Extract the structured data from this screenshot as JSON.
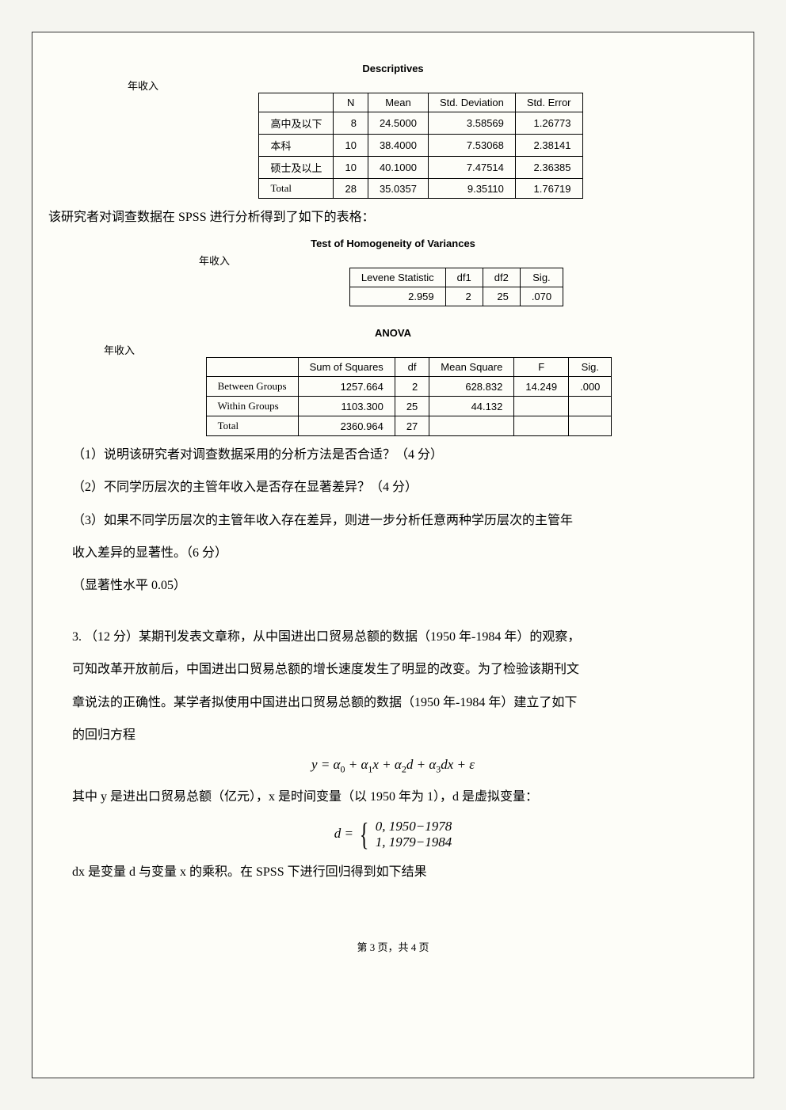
{
  "descriptives": {
    "title": "Descriptives",
    "subtitle": "年收入",
    "columns": [
      "",
      "N",
      "Mean",
      "Std. Deviation",
      "Std. Error"
    ],
    "rows": [
      [
        "高中及以下",
        "8",
        "24.5000",
        "3.58569",
        "1.26773"
      ],
      [
        "本科",
        "10",
        "38.4000",
        "7.53068",
        "2.38141"
      ],
      [
        "硕士及以上",
        "10",
        "40.1000",
        "7.47514",
        "2.36385"
      ],
      [
        "Total",
        "28",
        "35.0357",
        "9.35110",
        "1.76719"
      ]
    ]
  },
  "intro_line": "该研究者对调查数据在 SPSS 进行分析得到了如下的表格：",
  "homogeneity": {
    "title": "Test of Homogeneity of Variances",
    "subtitle": "年收入",
    "columns": [
      "Levene Statistic",
      "df1",
      "df2",
      "Sig."
    ],
    "row": [
      "2.959",
      "2",
      "25",
      ".070"
    ]
  },
  "anova": {
    "title": "ANOVA",
    "subtitle": "年收入",
    "columns": [
      "",
      "Sum of Squares",
      "df",
      "Mean Square",
      "F",
      "Sig."
    ],
    "rows": [
      [
        "Between Groups",
        "1257.664",
        "2",
        "628.832",
        "14.249",
        ".000"
      ],
      [
        "Within Groups",
        "1103.300",
        "25",
        "44.132",
        "",
        ""
      ],
      [
        "Total",
        "2360.964",
        "27",
        "",
        "",
        ""
      ]
    ]
  },
  "questions": {
    "q1": "（1）说明该研究者对调查数据采用的分析方法是否合适？（4 分）",
    "q2": "（2）不同学历层次的主管年收入是否存在显著差异？（4 分）",
    "q3a": "（3）如果不同学历层次的主管年收入存在差异，则进一步分析任意两种学历层次的主管年",
    "q3b": "收入差异的显著性。（6 分）",
    "sig": "（显著性水平 0.05）"
  },
  "problem3": {
    "p1": "3. （12 分）某期刊发表文章称，从中国进出口贸易总额的数据（1950 年-1984 年）的观察，",
    "p2": "可知改革开放前后，中国进出口贸易总额的增长速度发生了明显的改变。为了检验该期刊文",
    "p3": "章说法的正确性。某学者拟使用中国进出口贸易总额的数据（1950 年-1984 年）建立了如下",
    "p4": "的回归方程",
    "formula1": "y = α₀ + α₁x + α₂d + α₃dx + ε",
    "p5": "其中 y 是进出口贸易总额（亿元），x 是时间变量（以 1950 年为 1），d 是虚拟变量：",
    "piecewise_top": "0,  1950−1978",
    "piecewise_bot": "1,  1979−1984",
    "p6": "dx 是变量 d 与变量 x 的乘积。在 SPSS 下进行回归得到如下结果"
  },
  "page_footer": "第 3 页，共 4 页"
}
